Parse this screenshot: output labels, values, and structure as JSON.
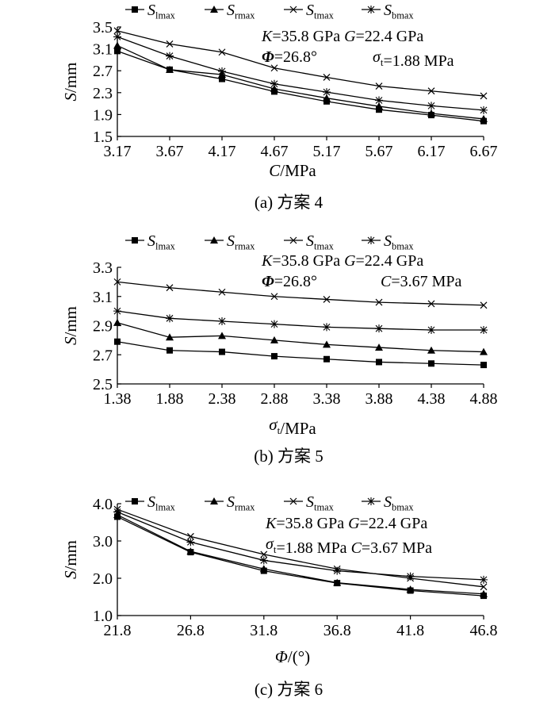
{
  "figure": {
    "background": "#ffffff",
    "line_color": "#000000"
  },
  "chart_data": [
    {
      "id": "a",
      "type": "line",
      "caption": "(a) 方案 4",
      "xlabel": "C/MPa",
      "ylabel": "S/mm",
      "x": [
        3.17,
        3.67,
        4.17,
        4.67,
        5.17,
        5.67,
        6.17,
        6.67
      ],
      "xticks": [
        "3.17",
        "3.67",
        "4.17",
        "4.67",
        "5.17",
        "5.67",
        "6.17",
        "6.67"
      ],
      "xlim": [
        3.17,
        6.67
      ],
      "ylim": [
        1.5,
        3.5
      ],
      "yticks": [
        "1.5",
        "1.9",
        "2.3",
        "2.7",
        "3.1",
        "3.5"
      ],
      "annotations": [
        "K=35.8 GPa G=22.4 GPa",
        "Φ=26.8°",
        "σt=1.88 MPa"
      ],
      "legend_position": "top",
      "series": [
        {
          "name": "Slmax",
          "marker": "square",
          "values": [
            3.06,
            2.72,
            2.55,
            2.32,
            2.14,
            1.99,
            1.89,
            1.78
          ]
        },
        {
          "name": "Srmax",
          "marker": "triangle",
          "values": [
            3.16,
            2.72,
            2.63,
            2.37,
            2.2,
            2.05,
            1.92,
            1.82
          ]
        },
        {
          "name": "Stmax",
          "marker": "x",
          "values": [
            3.43,
            3.19,
            3.04,
            2.75,
            2.58,
            2.42,
            2.33,
            2.24
          ]
        },
        {
          "name": "Sbmax",
          "marker": "star",
          "values": [
            3.32,
            2.97,
            2.69,
            2.46,
            2.31,
            2.16,
            2.06,
            1.98
          ]
        }
      ]
    },
    {
      "id": "b",
      "type": "line",
      "caption": "(b) 方案 5",
      "xlabel": "σt/MPa",
      "ylabel": "S/mm",
      "x": [
        1.38,
        1.88,
        2.38,
        2.88,
        3.38,
        3.88,
        4.38,
        4.88
      ],
      "xticks": [
        "1.38",
        "1.88",
        "2.38",
        "2.88",
        "3.38",
        "3.88",
        "4.38",
        "4.88"
      ],
      "xlim": [
        1.38,
        4.88
      ],
      "ylim": [
        2.5,
        3.3
      ],
      "yticks": [
        "2.5",
        "2.7",
        "2.9",
        "3.1",
        "3.3"
      ],
      "annotations": [
        "K=35.8 GPa G=22.4 GPa",
        "Φ=26.8°",
        "C=3.67 MPa"
      ],
      "legend_position": "top",
      "series": [
        {
          "name": "Slmax",
          "marker": "square",
          "values": [
            2.79,
            2.73,
            2.72,
            2.69,
            2.67,
            2.65,
            2.64,
            2.63
          ]
        },
        {
          "name": "Srmax",
          "marker": "triangle",
          "values": [
            2.92,
            2.82,
            2.83,
            2.8,
            2.77,
            2.75,
            2.73,
            2.72
          ]
        },
        {
          "name": "Stmax",
          "marker": "x",
          "values": [
            3.2,
            3.16,
            3.13,
            3.1,
            3.08,
            3.06,
            3.05,
            3.04
          ]
        },
        {
          "name": "Sbmax",
          "marker": "star",
          "values": [
            3.0,
            2.95,
            2.93,
            2.91,
            2.89,
            2.88,
            2.87,
            2.87
          ]
        }
      ]
    },
    {
      "id": "c",
      "type": "line",
      "caption": "(c) 方案 6",
      "xlabel": "Φ/(°)",
      "ylabel": "S/mm",
      "x": [
        21.8,
        26.8,
        31.8,
        36.8,
        41.8,
        46.8
      ],
      "xticks": [
        "21.8",
        "26.8",
        "31.8",
        "36.8",
        "41.8",
        "46.8"
      ],
      "xlim": [
        21.8,
        46.8
      ],
      "ylim": [
        1.0,
        4.0
      ],
      "yticks": [
        "1.0",
        "2.0",
        "3.0",
        "4.0"
      ],
      "annotations": [
        "K=35.8 GPa G=22.4 GPa",
        "σt=1.88 MPa C=3.67 MPa"
      ],
      "legend_position": "top",
      "series": [
        {
          "name": "Slmax",
          "marker": "square",
          "values": [
            3.65,
            2.7,
            2.2,
            1.87,
            1.67,
            1.53
          ]
        },
        {
          "name": "Srmax",
          "marker": "triangle",
          "values": [
            3.7,
            2.72,
            2.25,
            1.88,
            1.7,
            1.58
          ]
        },
        {
          "name": "Stmax",
          "marker": "x",
          "values": [
            3.85,
            3.12,
            2.64,
            2.25,
            2.0,
            1.77
          ]
        },
        {
          "name": "Sbmax",
          "marker": "star",
          "values": [
            3.78,
            2.97,
            2.48,
            2.2,
            2.05,
            1.96
          ]
        }
      ]
    }
  ]
}
